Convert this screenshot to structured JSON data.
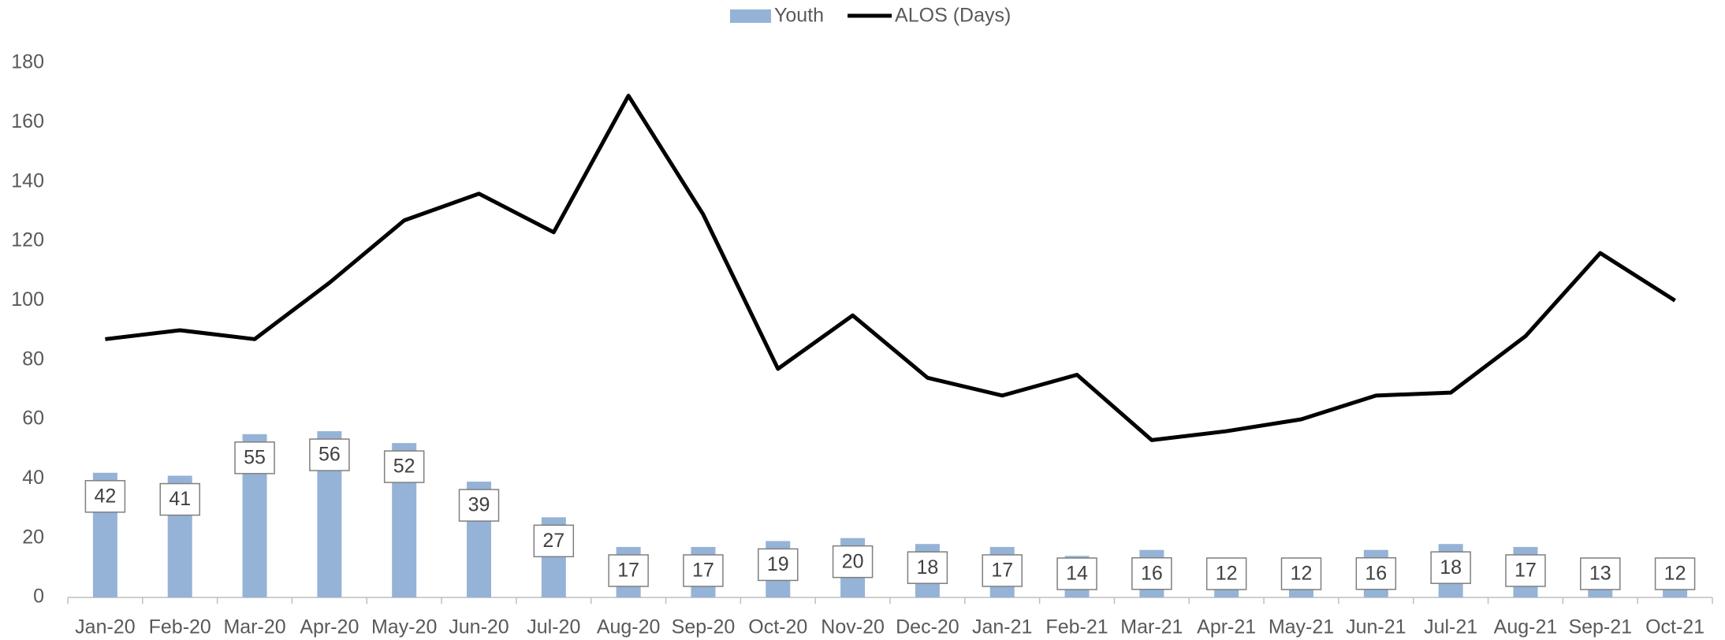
{
  "chart_data": {
    "type": "bar-line",
    "categories": [
      "Jan-20",
      "Feb-20",
      "Mar-20",
      "Apr-20",
      "May-20",
      "Jun-20",
      "Jul-20",
      "Aug-20",
      "Sep-20",
      "Oct-20",
      "Nov-20",
      "Dec-20",
      "Jan-21",
      "Feb-21",
      "Mar-21",
      "Apr-21",
      "May-21",
      "Jun-21",
      "Jul-21",
      "Aug-21",
      "Sep-21",
      "Oct-21"
    ],
    "series": [
      {
        "name": "Youth",
        "type": "bar",
        "color": "#95b3d7",
        "values": [
          42,
          41,
          55,
          56,
          52,
          39,
          27,
          17,
          17,
          19,
          20,
          18,
          17,
          14,
          16,
          12,
          12,
          16,
          18,
          17,
          13,
          12
        ]
      },
      {
        "name": "ALOS (Days)",
        "type": "line",
        "color": "#000000",
        "values": [
          87,
          90,
          87,
          106,
          127,
          136,
          123,
          169,
          129,
          77,
          95,
          74,
          68,
          75,
          53,
          56,
          60,
          68,
          69,
          88,
          116,
          100
        ]
      }
    ],
    "ylim": [
      0,
      180
    ],
    "yticks": [
      0,
      20,
      40,
      60,
      80,
      100,
      120,
      140,
      160,
      180
    ],
    "grid": false,
    "legend": "top"
  }
}
